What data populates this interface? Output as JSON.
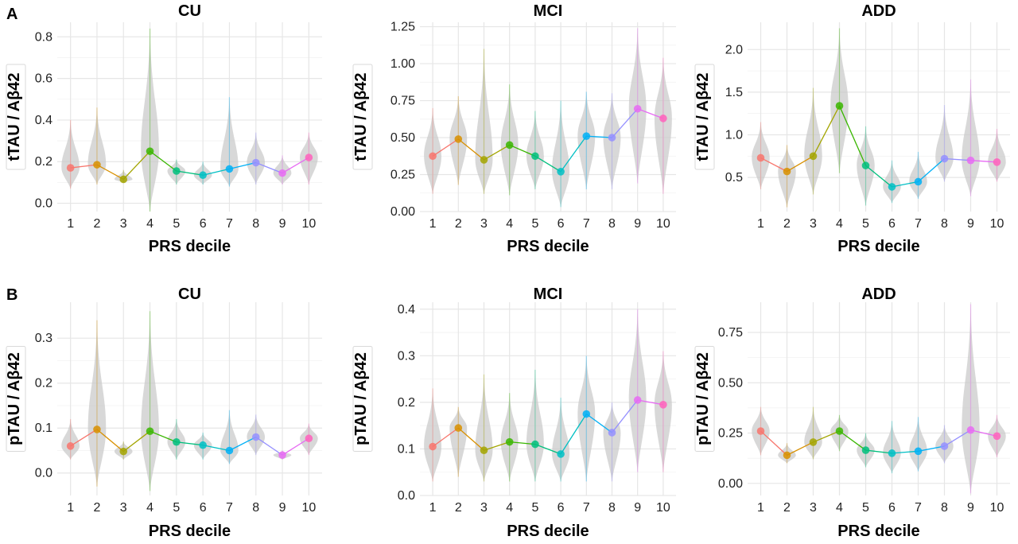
{
  "panel_letters": [
    "A",
    "B"
  ],
  "chart_data": [
    {
      "type": "line",
      "title": "CU",
      "xlabel": "PRS decile",
      "ylabel": "tTAU / Aβ42",
      "x": [
        1,
        2,
        3,
        4,
        5,
        6,
        7,
        8,
        9,
        10
      ],
      "values": [
        0.17,
        0.185,
        0.115,
        0.25,
        0.155,
        0.135,
        0.165,
        0.195,
        0.145,
        0.22
      ],
      "ylim": [
        -0.04,
        0.87
      ],
      "yticks": [
        0.0,
        0.2,
        0.4,
        0.6,
        0.8
      ],
      "ytick_labels": [
        "0.0",
        "0.2",
        "0.4",
        "0.6",
        "0.8"
      ],
      "violin_range": [
        [
          0.07,
          0.4
        ],
        [
          0.09,
          0.46
        ],
        [
          0.1,
          0.16
        ],
        [
          -0.04,
          0.84
        ],
        [
          0.09,
          0.21
        ],
        [
          0.09,
          0.2
        ],
        [
          0.08,
          0.51
        ],
        [
          0.09,
          0.34
        ],
        [
          0.09,
          0.23
        ],
        [
          0.09,
          0.34
        ]
      ],
      "grid": true
    },
    {
      "type": "line",
      "title": "MCI",
      "xlabel": "PRS decile",
      "ylabel": "tTAU / Aβ42",
      "x": [
        1,
        2,
        3,
        4,
        5,
        6,
        7,
        8,
        9,
        10
      ],
      "values": [
        0.375,
        0.49,
        0.35,
        0.45,
        0.375,
        0.27,
        0.51,
        0.5,
        0.695,
        0.63
      ],
      "ylim": [
        0.0,
        1.28
      ],
      "yticks": [
        0.0,
        0.25,
        0.5,
        0.75,
        1.0,
        1.25
      ],
      "ytick_labels": [
        "0.00",
        "0.25",
        "0.50",
        "0.75",
        "1.00",
        "1.25"
      ],
      "violin_range": [
        [
          0.12,
          0.7
        ],
        [
          0.18,
          0.78
        ],
        [
          0.12,
          1.1
        ],
        [
          0.11,
          0.86
        ],
        [
          0.15,
          0.68
        ],
        [
          0.03,
          0.75
        ],
        [
          0.15,
          0.81
        ],
        [
          0.15,
          0.8
        ],
        [
          0.19,
          1.24
        ],
        [
          0.12,
          1.04
        ]
      ],
      "grid": true
    },
    {
      "type": "line",
      "title": "ADD",
      "xlabel": "PRS decile",
      "ylabel": "tTAU / Aβ42",
      "x": [
        1,
        2,
        3,
        4,
        5,
        6,
        7,
        8,
        9,
        10
      ],
      "values": [
        0.73,
        0.57,
        0.75,
        1.34,
        0.64,
        0.39,
        0.45,
        0.72,
        0.7,
        0.68
      ],
      "ylim": [
        0.1,
        2.32
      ],
      "yticks": [
        0.5,
        1.0,
        1.5,
        2.0
      ],
      "ytick_labels": [
        "0.5",
        "1.0",
        "1.5",
        "2.0"
      ],
      "violin_range": [
        [
          0.36,
          1.15
        ],
        [
          0.15,
          0.88
        ],
        [
          0.3,
          1.55
        ],
        [
          0.55,
          2.25
        ],
        [
          0.17,
          1.1
        ],
        [
          0.2,
          0.7
        ],
        [
          0.25,
          0.8
        ],
        [
          0.45,
          1.35
        ],
        [
          0.28,
          1.65
        ],
        [
          0.45,
          1.07
        ]
      ],
      "grid": true
    },
    {
      "type": "line",
      "title": "CU",
      "xlabel": "PRS decile",
      "ylabel": "pTAU / Aβ42",
      "x": [
        1,
        2,
        3,
        4,
        5,
        6,
        7,
        8,
        9,
        10
      ],
      "values": [
        0.06,
        0.097,
        0.048,
        0.093,
        0.069,
        0.062,
        0.05,
        0.08,
        0.04,
        0.077
      ],
      "ylim": [
        -0.05,
        0.38
      ],
      "yticks": [
        0.0,
        0.1,
        0.2,
        0.3
      ],
      "ytick_labels": [
        "0.0",
        "0.1",
        "0.2",
        "0.3"
      ],
      "violin_range": [
        [
          0.03,
          0.12
        ],
        [
          -0.03,
          0.34
        ],
        [
          0.03,
          0.07
        ],
        [
          -0.04,
          0.36
        ],
        [
          0.03,
          0.12
        ],
        [
          0.03,
          0.09
        ],
        [
          0.02,
          0.14
        ],
        [
          0.04,
          0.13
        ],
        [
          0.03,
          0.05
        ],
        [
          0.04,
          0.11
        ]
      ],
      "grid": true
    },
    {
      "type": "line",
      "title": "MCI",
      "xlabel": "PRS decile",
      "ylabel": "pTAU / Aβ42",
      "x": [
        1,
        2,
        3,
        4,
        5,
        6,
        7,
        8,
        9,
        10
      ],
      "values": [
        0.105,
        0.145,
        0.097,
        0.115,
        0.11,
        0.089,
        0.175,
        0.135,
        0.205,
        0.195
      ],
      "ylim": [
        0.0,
        0.415
      ],
      "yticks": [
        0.0,
        0.1,
        0.2,
        0.3,
        0.4
      ],
      "ytick_labels": [
        "0.0",
        "0.1",
        "0.2",
        "0.3",
        "0.4"
      ],
      "violin_range": [
        [
          0.03,
          0.23
        ],
        [
          0.04,
          0.19
        ],
        [
          0.03,
          0.26
        ],
        [
          0.03,
          0.22
        ],
        [
          0.03,
          0.27
        ],
        [
          0.03,
          0.21
        ],
        [
          0.03,
          0.3
        ],
        [
          0.03,
          0.2
        ],
        [
          0.05,
          0.4
        ],
        [
          0.05,
          0.31
        ]
      ],
      "grid": true
    },
    {
      "type": "line",
      "title": "ADD",
      "xlabel": "PRS decile",
      "ylabel": "pTAU / Aβ42",
      "x": [
        1,
        2,
        3,
        4,
        5,
        6,
        7,
        8,
        9,
        10
      ],
      "values": [
        0.26,
        0.14,
        0.205,
        0.26,
        0.165,
        0.15,
        0.16,
        0.185,
        0.265,
        0.235
      ],
      "ylim": [
        -0.06,
        0.9
      ],
      "yticks": [
        0.0,
        0.25,
        0.5,
        0.75
      ],
      "ytick_labels": [
        "0.00",
        "0.25",
        "0.50",
        "0.75"
      ],
      "violin_range": [
        [
          0.14,
          0.38
        ],
        [
          0.1,
          0.2
        ],
        [
          0.12,
          0.38
        ],
        [
          0.16,
          0.34
        ],
        [
          0.08,
          0.25
        ],
        [
          0.05,
          0.31
        ],
        [
          0.06,
          0.33
        ],
        [
          0.1,
          0.29
        ],
        [
          -0.05,
          0.89
        ],
        [
          0.13,
          0.34
        ]
      ],
      "grid": true
    }
  ],
  "decile_colors": [
    "#F8766D",
    "#D89000",
    "#A3A500",
    "#39B600",
    "#00BF7D",
    "#00BFC4",
    "#00B0F6",
    "#9590FF",
    "#E76BF3",
    "#FF62BC"
  ]
}
